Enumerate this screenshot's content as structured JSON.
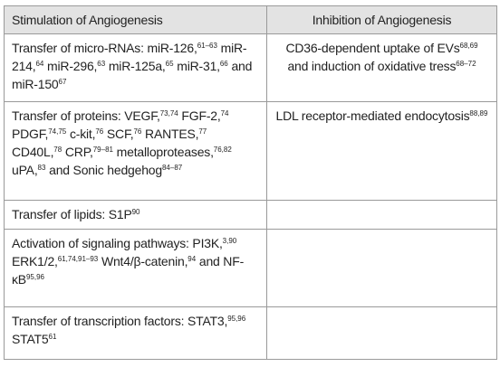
{
  "table": {
    "header": [
      "Stimulation of Angiogenesis",
      "Inhibition of Angiogenesis"
    ],
    "rows": [
      [
        [
          {
            "text": "Transfer of micro-RNAs: miR-126,",
            "sup": "61–63"
          },
          {
            "text": " miR-214,",
            "sup": "64"
          },
          {
            "text": " miR-296,",
            "sup": "63"
          },
          {
            "text": " miR-125a,",
            "sup": "65"
          },
          {
            "text": " miR-31,",
            "sup": "66"
          },
          {
            "text": " and miR-150",
            "sup": "67"
          }
        ],
        [
          {
            "text": "CD36-dependent uptake of EVs",
            "sup": "68,69"
          },
          {
            "text": " and induction of oxidative tress",
            "sup": "68–72"
          }
        ]
      ],
      [
        [
          {
            "text": "Transfer of proteins: VEGF,",
            "sup": "73,74"
          },
          {
            "text": " FGF-2,",
            "sup": "74"
          },
          {
            "text": " PDGF,",
            "sup": "74,75"
          },
          {
            "text": " c-kit,",
            "sup": "76"
          },
          {
            "text": " SCF,",
            "sup": "76"
          },
          {
            "text": " RANTES,",
            "sup": "77"
          },
          {
            "text": " CD40L,",
            "sup": "78"
          },
          {
            "text": " CRP,",
            "sup": "79–81"
          },
          {
            "text": " metalloproteases,",
            "sup": "76,82"
          },
          {
            "text": " uPA,",
            "sup": "83"
          },
          {
            "text": " and Sonic hedgehog",
            "sup": "84–87"
          }
        ],
        [
          {
            "text": "LDL receptor-mediated endocytosis",
            "sup": "88,89"
          }
        ]
      ],
      [
        [
          {
            "text": "Transfer of lipids: S1P",
            "sup": "90"
          }
        ],
        []
      ],
      [
        [
          {
            "text": "Activation of signaling pathways: PI3K,",
            "sup": "3,90"
          },
          {
            "text": " ERK1/2,",
            "sup": "61,74,91–93"
          },
          {
            "text": " Wnt4/β-catenin,",
            "sup": "94"
          },
          {
            "text": " and NF-κB",
            "sup": "95,96"
          }
        ],
        []
      ],
      [
        [
          {
            "text": "Transfer of transcription factors: STAT3,",
            "sup": "95,96"
          },
          {
            "text": " STAT5",
            "sup": "61"
          }
        ],
        []
      ]
    ]
  }
}
